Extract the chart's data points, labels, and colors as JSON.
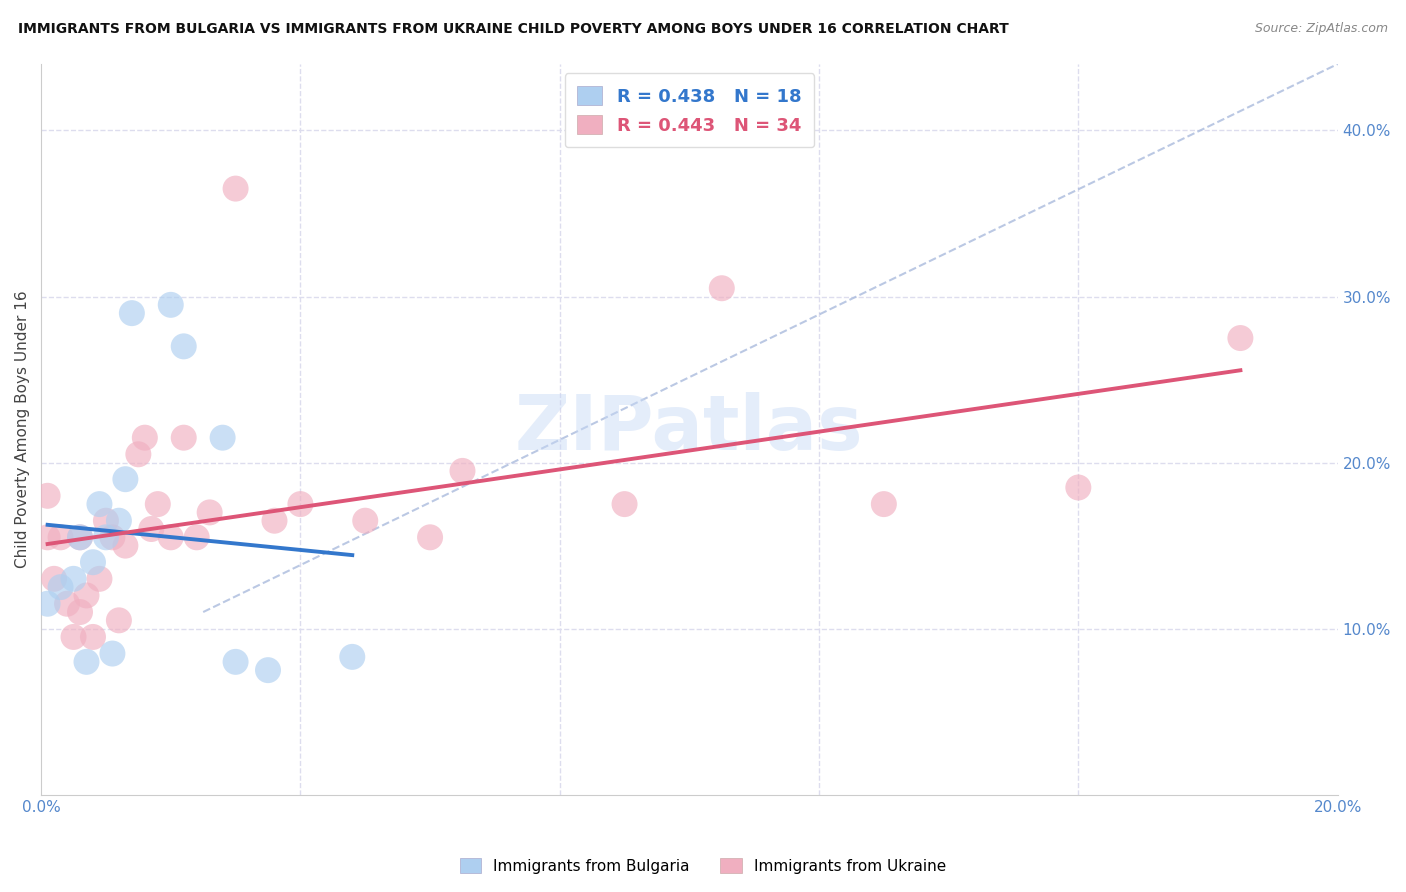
{
  "title": "IMMIGRANTS FROM BULGARIA VS IMMIGRANTS FROM UKRAINE CHILD POVERTY AMONG BOYS UNDER 16 CORRELATION CHART",
  "source": "Source: ZipAtlas.com",
  "ylabel": "Child Poverty Among Boys Under 16",
  "xlim": [
    0.0,
    0.2
  ],
  "ylim": [
    0.0,
    0.44
  ],
  "xticks": [
    0.0,
    0.04,
    0.08,
    0.12,
    0.16,
    0.2
  ],
  "yticks": [
    0.1,
    0.2,
    0.3,
    0.4
  ],
  "yticklabels_right": [
    "10.0%",
    "20.0%",
    "30.0%",
    "40.0%"
  ],
  "bulgaria_R": 0.438,
  "bulgaria_N": 18,
  "ukraine_R": 0.443,
  "ukraine_N": 34,
  "bulgaria_color": "#aecff0",
  "ukraine_color": "#f0afc0",
  "bulgaria_line_color": "#3377cc",
  "ukraine_line_color": "#dd5577",
  "diag_color": "#aabbdd",
  "bulgaria_x": [
    0.001,
    0.003,
    0.005,
    0.006,
    0.007,
    0.008,
    0.009,
    0.01,
    0.011,
    0.012,
    0.013,
    0.014,
    0.02,
    0.022,
    0.028,
    0.03,
    0.035,
    0.048
  ],
  "bulgaria_y": [
    0.115,
    0.125,
    0.13,
    0.155,
    0.08,
    0.14,
    0.175,
    0.155,
    0.085,
    0.165,
    0.19,
    0.29,
    0.295,
    0.27,
    0.215,
    0.08,
    0.075,
    0.083
  ],
  "ukraine_x": [
    0.001,
    0.001,
    0.002,
    0.003,
    0.004,
    0.005,
    0.006,
    0.006,
    0.007,
    0.008,
    0.009,
    0.01,
    0.011,
    0.012,
    0.013,
    0.015,
    0.016,
    0.017,
    0.018,
    0.02,
    0.022,
    0.024,
    0.026,
    0.03,
    0.036,
    0.04,
    0.05,
    0.06,
    0.065,
    0.09,
    0.105,
    0.13,
    0.16,
    0.185
  ],
  "ukraine_y": [
    0.18,
    0.155,
    0.13,
    0.155,
    0.115,
    0.095,
    0.11,
    0.155,
    0.12,
    0.095,
    0.13,
    0.165,
    0.155,
    0.105,
    0.15,
    0.205,
    0.215,
    0.16,
    0.175,
    0.155,
    0.215,
    0.155,
    0.17,
    0.365,
    0.165,
    0.175,
    0.165,
    0.155,
    0.195,
    0.175,
    0.305,
    0.175,
    0.185,
    0.275
  ],
  "watermark": "ZIPatlas",
  "bg_color": "#ffffff",
  "grid_color": "#ddddee"
}
